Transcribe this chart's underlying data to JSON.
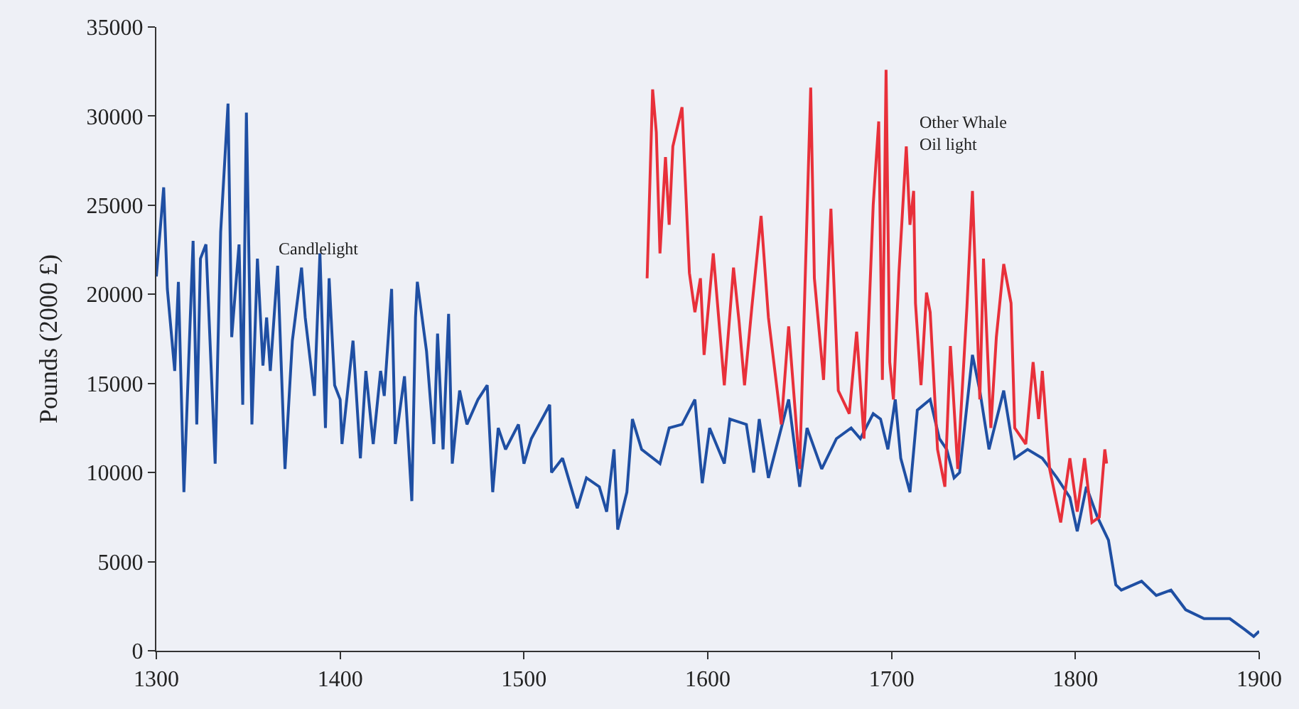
{
  "chart_data": {
    "type": "line",
    "ylabel": "Pounds (2000 £)",
    "xlim": [
      1300,
      1900
    ],
    "xticks": [
      1300,
      1400,
      1500,
      1600,
      1700,
      1800,
      1900
    ],
    "ylim": [
      0,
      35000
    ],
    "yticks": [
      0,
      5000,
      10000,
      15000,
      20000,
      25000,
      30000,
      35000
    ],
    "grid": false,
    "legend": false,
    "marker": "none",
    "line_style": "solid",
    "series": [
      {
        "name": "Candlelight",
        "color": "#1f4fa3",
        "x": [
          1300,
          1304,
          1306,
          1310,
          1312,
          1315,
          1320,
          1322,
          1324,
          1327,
          1332,
          1335,
          1339,
          1341,
          1345,
          1347,
          1349,
          1352,
          1355,
          1358,
          1360,
          1362,
          1366,
          1370,
          1374,
          1379,
          1381,
          1386,
          1389,
          1392,
          1394,
          1397,
          1400,
          1401,
          1407,
          1411,
          1414,
          1418,
          1422,
          1424,
          1428,
          1430,
          1435,
          1439,
          1441,
          1442,
          1447,
          1451,
          1453,
          1456,
          1459,
          1461,
          1465,
          1469,
          1475,
          1480,
          1483,
          1486,
          1490,
          1497,
          1500,
          1504,
          1514,
          1515,
          1521,
          1529,
          1534,
          1541,
          1545,
          1549,
          1551,
          1556,
          1559,
          1564,
          1574,
          1579,
          1586,
          1593,
          1597,
          1601,
          1609,
          1612,
          1621,
          1625,
          1628,
          1633,
          1644,
          1650,
          1654,
          1662,
          1670,
          1678,
          1683,
          1690,
          1694,
          1698,
          1702,
          1705,
          1710,
          1714,
          1721,
          1726,
          1730,
          1734,
          1737,
          1744,
          1748,
          1753,
          1761,
          1767,
          1774,
          1782,
          1790,
          1797,
          1801,
          1806,
          1812,
          1818,
          1822,
          1825,
          1836,
          1844,
          1852,
          1860,
          1870,
          1884,
          1892,
          1897,
          1900
        ],
        "values": [
          21000,
          26000,
          20300,
          15700,
          20700,
          8900,
          23000,
          12700,
          22000,
          22800,
          10500,
          23500,
          30700,
          17600,
          22800,
          13800,
          30200,
          12700,
          22000,
          16000,
          18700,
          15700,
          21600,
          10200,
          17400,
          21500,
          18700,
          14300,
          22300,
          12500,
          20900,
          14900,
          14100,
          11600,
          17400,
          10800,
          15700,
          11600,
          15700,
          14300,
          20300,
          11600,
          15400,
          8400,
          18700,
          20700,
          16800,
          11600,
          17800,
          11300,
          18900,
          10500,
          14600,
          12700,
          14100,
          14900,
          8900,
          12500,
          11300,
          12700,
          10500,
          11900,
          13800,
          10000,
          10800,
          8000,
          9700,
          9200,
          7800,
          11300,
          6800,
          8900,
          13000,
          11300,
          10500,
          12500,
          12700,
          14100,
          9400,
          12500,
          10500,
          13000,
          12700,
          10000,
          13000,
          9700,
          14100,
          9200,
          12500,
          10200,
          11900,
          12500,
          11900,
          13300,
          13000,
          11300,
          14100,
          10800,
          8900,
          13500,
          14100,
          11900,
          11300,
          9700,
          10000,
          16600,
          14600,
          11300,
          14600,
          10800,
          11300,
          10800,
          9700,
          8600,
          6700,
          9200,
          7500,
          6200,
          3700,
          3400,
          3900,
          3100,
          3400,
          2300,
          1800,
          1800,
          1200,
          800,
          1100
        ]
      },
      {
        "name": "Other Whale Oil light",
        "color": "#e8303a",
        "x": [
          1567,
          1570,
          1572,
          1574,
          1577,
          1579,
          1581,
          1586,
          1590,
          1593,
          1596,
          1598,
          1603,
          1609,
          1614,
          1617,
          1620,
          1624,
          1629,
          1633,
          1640,
          1644,
          1650,
          1656,
          1658,
          1663,
          1667,
          1671,
          1677,
          1681,
          1685,
          1690,
          1693,
          1695,
          1697,
          1699,
          1701,
          1704,
          1708,
          1710,
          1712,
          1713,
          1716,
          1719,
          1721,
          1725,
          1729,
          1732,
          1736,
          1741,
          1744,
          1748,
          1750,
          1754,
          1757,
          1761,
          1765,
          1767,
          1773,
          1777,
          1780,
          1782,
          1786,
          1792,
          1797,
          1801,
          1805,
          1809,
          1813,
          1816,
          1817
        ],
        "values": [
          20900,
          31500,
          29100,
          22300,
          27700,
          23900,
          28300,
          30500,
          21200,
          19000,
          20900,
          16600,
          22300,
          14900,
          21500,
          18500,
          14900,
          19300,
          24400,
          18700,
          12700,
          18200,
          10200,
          31600,
          20900,
          15200,
          24800,
          14600,
          13300,
          17900,
          11900,
          25000,
          29700,
          15200,
          32600,
          16200,
          14100,
          21200,
          28300,
          23900,
          25800,
          19500,
          14900,
          20100,
          19000,
          11300,
          9200,
          17100,
          10200,
          19300,
          25800,
          14100,
          22000,
          12500,
          17600,
          21700,
          19500,
          12500,
          11600,
          16200,
          13000,
          15700,
          10200,
          7200,
          10800,
          7800,
          10800,
          7200,
          7500,
          11300,
          10500
        ]
      }
    ]
  }
}
